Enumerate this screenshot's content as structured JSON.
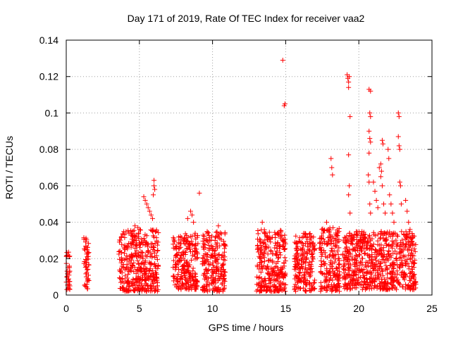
{
  "chart_data": {
    "type": "scatter",
    "title": "Day 171 of 2019, Rate Of TEC Index for receiver vaa2",
    "xlabel": "GPS time / hours",
    "ylabel": "ROTI / TECUs",
    "xlim": [
      0,
      25
    ],
    "ylim": [
      0,
      0.14
    ],
    "x_ticks": [
      0,
      5,
      10,
      15,
      20,
      25
    ],
    "x_tick_labels": [
      "0",
      "5",
      "10",
      "15",
      "20",
      "25"
    ],
    "y_ticks": [
      0,
      0.02,
      0.04,
      0.06,
      0.08,
      0.1,
      0.12,
      0.14
    ],
    "y_tick_labels": [
      "0",
      "0.02",
      "0.04",
      "0.06",
      "0.08",
      "0.1",
      "0.12",
      "0.14"
    ],
    "grid": true,
    "marker": "+",
    "series": [
      {
        "name": "ROTI",
        "color": "#ff0000",
        "segments": [
          {
            "t_start": 0.0,
            "t_end": 0.25,
            "low": 0.003,
            "high": 0.024
          },
          {
            "t_start": 1.2,
            "t_end": 1.55,
            "low": 0.003,
            "high": 0.032
          },
          {
            "t_start": 3.6,
            "t_end": 6.3,
            "low": 0.002,
            "high": 0.036
          },
          {
            "t_start": 7.3,
            "t_end": 9.0,
            "low": 0.003,
            "high": 0.034
          },
          {
            "t_start": 9.3,
            "t_end": 10.9,
            "low": 0.002,
            "high": 0.036
          },
          {
            "t_start": 13.0,
            "t_end": 15.0,
            "low": 0.002,
            "high": 0.036
          },
          {
            "t_start": 15.6,
            "t_end": 17.0,
            "low": 0.002,
            "high": 0.034
          },
          {
            "t_start": 17.3,
            "t_end": 18.7,
            "low": 0.002,
            "high": 0.037
          },
          {
            "t_start": 18.9,
            "t_end": 23.9,
            "low": 0.003,
            "high": 0.035
          }
        ],
        "points": [
          {
            "x": 5.3,
            "y": 0.054
          },
          {
            "x": 5.4,
            "y": 0.052
          },
          {
            "x": 5.5,
            "y": 0.05
          },
          {
            "x": 5.6,
            "y": 0.048
          },
          {
            "x": 5.7,
            "y": 0.046
          },
          {
            "x": 5.8,
            "y": 0.044
          },
          {
            "x": 5.9,
            "y": 0.042
          },
          {
            "x": 6.0,
            "y": 0.063
          },
          {
            "x": 6.0,
            "y": 0.06
          },
          {
            "x": 6.05,
            "y": 0.058
          },
          {
            "x": 5.95,
            "y": 0.055
          },
          {
            "x": 4.7,
            "y": 0.038
          },
          {
            "x": 4.9,
            "y": 0.037
          },
          {
            "x": 8.3,
            "y": 0.042
          },
          {
            "x": 8.5,
            "y": 0.046
          },
          {
            "x": 8.6,
            "y": 0.044
          },
          {
            "x": 8.7,
            "y": 0.04
          },
          {
            "x": 9.1,
            "y": 0.056
          },
          {
            "x": 10.4,
            "y": 0.038
          },
          {
            "x": 13.4,
            "y": 0.04
          },
          {
            "x": 14.8,
            "y": 0.129
          },
          {
            "x": 14.9,
            "y": 0.104
          },
          {
            "x": 14.95,
            "y": 0.105
          },
          {
            "x": 17.8,
            "y": 0.04
          },
          {
            "x": 18.1,
            "y": 0.075
          },
          {
            "x": 18.15,
            "y": 0.07
          },
          {
            "x": 18.2,
            "y": 0.066
          },
          {
            "x": 19.2,
            "y": 0.121
          },
          {
            "x": 19.25,
            "y": 0.119
          },
          {
            "x": 19.3,
            "y": 0.117
          },
          {
            "x": 19.3,
            "y": 0.114
          },
          {
            "x": 19.35,
            "y": 0.12
          },
          {
            "x": 19.4,
            "y": 0.098
          },
          {
            "x": 19.3,
            "y": 0.077
          },
          {
            "x": 19.35,
            "y": 0.06
          },
          {
            "x": 19.3,
            "y": 0.055
          },
          {
            "x": 19.4,
            "y": 0.045
          },
          {
            "x": 20.7,
            "y": 0.113
          },
          {
            "x": 20.8,
            "y": 0.112
          },
          {
            "x": 20.75,
            "y": 0.1
          },
          {
            "x": 20.8,
            "y": 0.098
          },
          {
            "x": 20.7,
            "y": 0.09
          },
          {
            "x": 20.75,
            "y": 0.086
          },
          {
            "x": 20.8,
            "y": 0.084
          },
          {
            "x": 20.7,
            "y": 0.078
          },
          {
            "x": 20.65,
            "y": 0.066
          },
          {
            "x": 20.7,
            "y": 0.062
          },
          {
            "x": 20.75,
            "y": 0.05
          },
          {
            "x": 20.8,
            "y": 0.045
          },
          {
            "x": 21.0,
            "y": 0.062
          },
          {
            "x": 21.1,
            "y": 0.057
          },
          {
            "x": 21.2,
            "y": 0.052
          },
          {
            "x": 21.3,
            "y": 0.048
          },
          {
            "x": 21.4,
            "y": 0.07
          },
          {
            "x": 21.5,
            "y": 0.072
          },
          {
            "x": 21.55,
            "y": 0.068
          },
          {
            "x": 21.6,
            "y": 0.085
          },
          {
            "x": 21.65,
            "y": 0.083
          },
          {
            "x": 21.5,
            "y": 0.065
          },
          {
            "x": 21.6,
            "y": 0.06
          },
          {
            "x": 21.7,
            "y": 0.05
          },
          {
            "x": 21.8,
            "y": 0.045
          },
          {
            "x": 22.0,
            "y": 0.08
          },
          {
            "x": 22.05,
            "y": 0.075
          },
          {
            "x": 22.1,
            "y": 0.055
          },
          {
            "x": 22.2,
            "y": 0.05
          },
          {
            "x": 22.3,
            "y": 0.045
          },
          {
            "x": 22.4,
            "y": 0.04
          },
          {
            "x": 22.7,
            "y": 0.1
          },
          {
            "x": 22.75,
            "y": 0.098
          },
          {
            "x": 22.7,
            "y": 0.087
          },
          {
            "x": 22.75,
            "y": 0.082
          },
          {
            "x": 22.8,
            "y": 0.08
          },
          {
            "x": 22.8,
            "y": 0.062
          },
          {
            "x": 22.85,
            "y": 0.06
          },
          {
            "x": 22.9,
            "y": 0.05
          },
          {
            "x": 23.2,
            "y": 0.052
          },
          {
            "x": 23.3,
            "y": 0.046
          },
          {
            "x": 23.4,
            "y": 0.04
          },
          {
            "x": 23.5,
            "y": 0.036
          }
        ]
      }
    ]
  }
}
